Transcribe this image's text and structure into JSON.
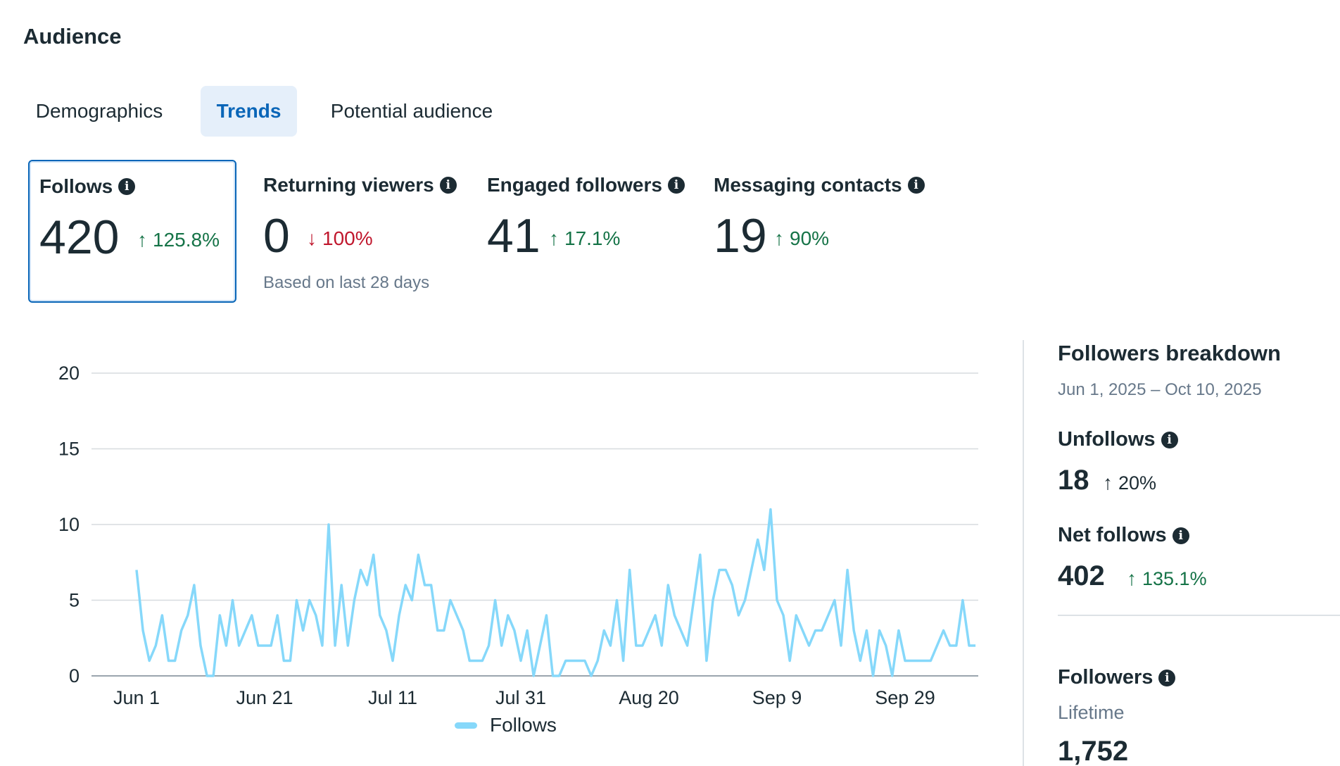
{
  "page_title": "Audience",
  "tabs": [
    {
      "label": "Demographics",
      "active": false
    },
    {
      "label": "Trends",
      "active": true
    },
    {
      "label": "Potential audience",
      "active": false
    }
  ],
  "metrics": [
    {
      "label": "Follows",
      "value": "420",
      "change": "125.8%",
      "direction": "up",
      "selected": true
    },
    {
      "label": "Returning viewers",
      "value": "0",
      "change": "100%",
      "direction": "down",
      "selected": false
    },
    {
      "label": "Engaged followers",
      "value": "41",
      "change": "17.1%",
      "direction": "up",
      "selected": false
    },
    {
      "label": "Messaging contacts",
      "value": "19",
      "change": "90%",
      "direction": "up",
      "selected": false
    }
  ],
  "basis_note": "Based on last 28 days",
  "icons": {
    "info": "info-icon",
    "up": "arrow-up-icon",
    "down": "arrow-down-icon"
  },
  "colors": {
    "accent": "#0a66b8",
    "positive": "#157347",
    "negative": "#c0172d",
    "series": "#86d8fa"
  },
  "chart_data": {
    "type": "line",
    "x_tick_labels": [
      "Jun 1",
      "Jun 21",
      "Jul 11",
      "Jul 31",
      "Aug 20",
      "Sep 9",
      "Sep 29"
    ],
    "y_tick_labels": [
      "0",
      "5",
      "10",
      "15",
      "20"
    ],
    "ylim": [
      0,
      20
    ],
    "grid": true,
    "legend_position": "bottom",
    "start_label": "Jun 1",
    "series": [
      {
        "name": "Follows",
        "values": [
          7,
          3,
          1,
          2,
          4,
          1,
          1,
          3,
          4,
          6,
          2,
          0,
          0,
          4,
          2,
          5,
          2,
          3,
          4,
          2,
          2,
          2,
          4,
          1,
          1,
          5,
          3,
          5,
          4,
          2,
          10,
          2,
          6,
          2,
          5,
          7,
          6,
          8,
          4,
          3,
          1,
          4,
          6,
          5,
          8,
          6,
          6,
          3,
          3,
          5,
          4,
          3,
          1,
          1,
          1,
          2,
          5,
          2,
          4,
          3,
          1,
          3,
          0,
          2,
          4,
          0,
          0,
          1,
          1,
          1,
          1,
          0,
          1,
          3,
          2,
          5,
          1,
          7,
          2,
          2,
          3,
          4,
          2,
          6,
          4,
          3,
          2,
          5,
          8,
          1,
          5,
          7,
          7,
          6,
          4,
          5,
          7,
          9,
          7,
          11,
          5,
          4,
          1,
          4,
          3,
          2,
          3,
          3,
          4,
          5,
          2,
          7,
          3,
          1,
          3,
          0,
          3,
          2,
          0,
          3,
          1,
          1,
          1,
          1,
          1,
          2,
          3,
          2,
          2,
          5,
          2,
          2
        ]
      }
    ]
  },
  "breakdown": {
    "title": "Followers breakdown",
    "range": "Jun 1, 2025 – Oct 10, 2025",
    "unfollows": {
      "label": "Unfollows",
      "value": "18",
      "change": "20%"
    },
    "net_follows": {
      "label": "Net follows",
      "value": "402",
      "change": "135.1%"
    },
    "followers": {
      "label": "Followers",
      "sub": "Lifetime",
      "value": "1,752"
    }
  }
}
